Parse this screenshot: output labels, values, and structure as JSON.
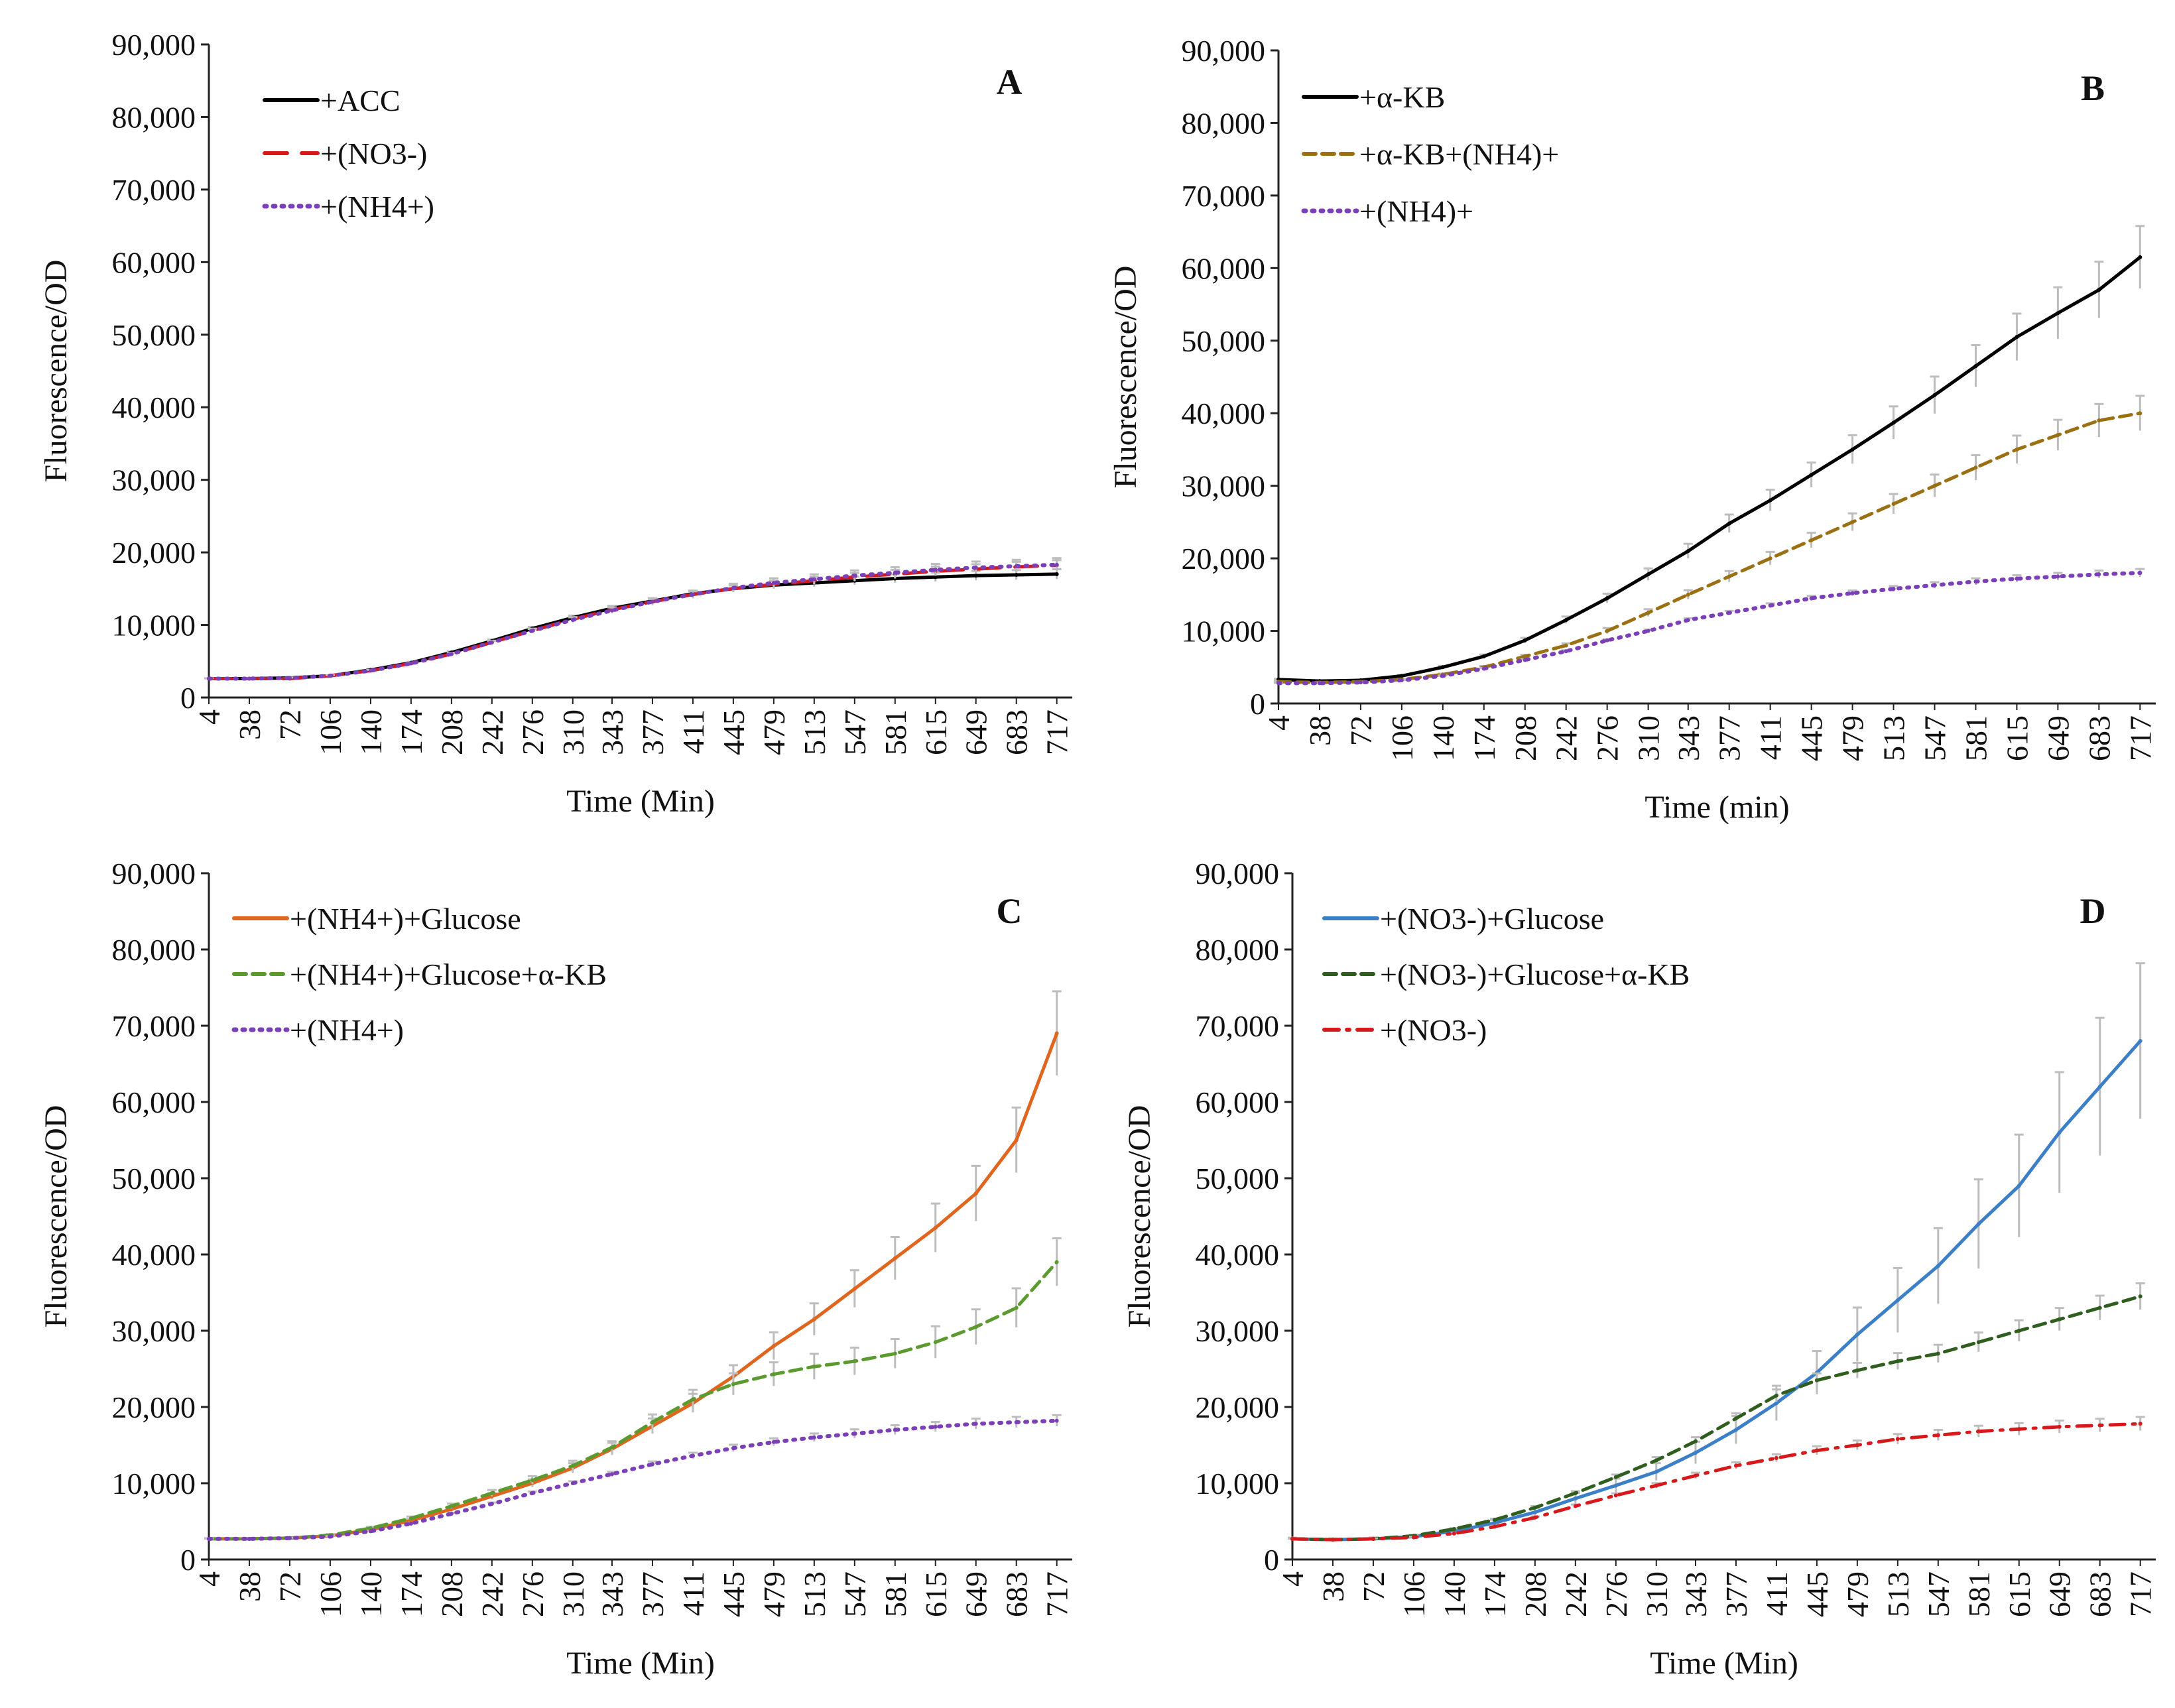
{
  "chart_data": [
    {
      "type": "line",
      "panel": "A",
      "xlabel": "Time (Min)",
      "ylabel": "Fluorescence/OD",
      "ylim": [
        0,
        90000
      ],
      "yticks": [
        "0",
        "10,000",
        "20,000",
        "30,000",
        "40,000",
        "50,000",
        "60,000",
        "70,000",
        "80,000",
        "90,000"
      ],
      "x": [
        4,
        38,
        72,
        106,
        140,
        174,
        208,
        242,
        276,
        310,
        343,
        377,
        411,
        445,
        479,
        513,
        547,
        581,
        615,
        649,
        683,
        717
      ],
      "legend_placement": "top-left",
      "series": [
        {
          "name": "+ACC",
          "color": "#000000",
          "style": "solid",
          "err": 0.04,
          "values": [
            2600,
            2600,
            2700,
            3000,
            3800,
            4800,
            6200,
            7800,
            9500,
            11000,
            12300,
            13300,
            14300,
            15000,
            15500,
            15800,
            16100,
            16400,
            16600,
            16800,
            16900,
            17000
          ]
        },
        {
          "name": "+(NO3-)",
          "color": "#d7191c",
          "style": "longdash",
          "err": 0.04,
          "values": [
            2600,
            2600,
            2600,
            3000,
            3700,
            4700,
            6000,
            7600,
            9200,
            10800,
            12100,
            13200,
            14200,
            15000,
            15600,
            16100,
            16600,
            17000,
            17400,
            17700,
            18000,
            18200
          ]
        },
        {
          "name": "+(NH4+)",
          "color": "#7b3fb8",
          "style": "dot",
          "err": 0.05,
          "values": [
            2600,
            2600,
            2700,
            3000,
            3700,
            4700,
            6000,
            7600,
            9200,
            10700,
            12000,
            13200,
            14200,
            15100,
            15800,
            16300,
            16800,
            17200,
            17600,
            17900,
            18100,
            18300
          ]
        }
      ]
    },
    {
      "type": "line",
      "panel": "B",
      "xlabel": "Time (min)",
      "ylabel": "Fluorescence/OD",
      "ylim": [
        0,
        90000
      ],
      "yticks": [
        "0",
        "10,000",
        "20,000",
        "30,000",
        "40,000",
        "50,000",
        "60,000",
        "70,000",
        "80,000",
        "90,000"
      ],
      "x": [
        4,
        38,
        72,
        106,
        140,
        174,
        208,
        242,
        276,
        310,
        343,
        377,
        411,
        445,
        479,
        513,
        547,
        581,
        615,
        649,
        683,
        717
      ],
      "legend_placement": "top-left",
      "series": [
        {
          "name": "+α-KB",
          "color": "#000000",
          "style": "solid",
          "err": 0.07,
          "values": [
            3300,
            3100,
            3200,
            3800,
            5000,
            6500,
            8700,
            11500,
            14500,
            17800,
            21000,
            24800,
            28000,
            31500,
            35000,
            38700,
            42500,
            46500,
            50500,
            53800,
            57000,
            61500
          ]
        },
        {
          "name": "+α-KB+(NH4)+",
          "color": "#9a7012",
          "style": "dash",
          "err": 0.06,
          "values": [
            3000,
            2900,
            3000,
            3300,
            4000,
            5000,
            6500,
            8000,
            10000,
            12500,
            15000,
            17500,
            20000,
            22500,
            25000,
            27500,
            30000,
            32500,
            35000,
            37000,
            39000,
            40000
          ]
        },
        {
          "name": "+(NH4)+",
          "color": "#7b3fb8",
          "style": "dot",
          "err": 0.03,
          "values": [
            2800,
            2800,
            2900,
            3200,
            3800,
            4800,
            6000,
            7200,
            8700,
            10000,
            11500,
            12500,
            13500,
            14500,
            15200,
            15800,
            16300,
            16800,
            17200,
            17500,
            17800,
            18000
          ]
        }
      ]
    },
    {
      "type": "line",
      "panel": "C",
      "xlabel": "Time (Min)",
      "ylabel": "Fluorescence/OD",
      "ylim": [
        0,
        90000
      ],
      "yticks": [
        "0",
        "10,000",
        "20,000",
        "30,000",
        "40,000",
        "50,000",
        "60,000",
        "70,000",
        "80,000",
        "90,000"
      ],
      "x": [
        4,
        38,
        72,
        106,
        140,
        174,
        208,
        242,
        276,
        310,
        343,
        377,
        411,
        445,
        479,
        513,
        547,
        581,
        615,
        649,
        683,
        717
      ],
      "legend_placement": "top-left",
      "series": [
        {
          "name": "+(NH4+)+Glucose",
          "color": "#e0651f",
          "style": "solid",
          "err": 0.08,
          "values": [
            2700,
            2700,
            2800,
            3100,
            3900,
            5100,
            6600,
            8300,
            10000,
            12000,
            14500,
            17500,
            20500,
            24000,
            28000,
            31500,
            35500,
            39500,
            43500,
            48000,
            55000,
            69000
          ]
        },
        {
          "name": "+(NH4+)+Glucose+α-KB",
          "color": "#5a9a2e",
          "style": "dash",
          "err": 0.08,
          "values": [
            2700,
            2700,
            2800,
            3200,
            4100,
            5400,
            7000,
            8700,
            10400,
            12300,
            14700,
            18000,
            21000,
            23000,
            24300,
            25300,
            26000,
            27000,
            28500,
            30500,
            33000,
            39000
          ]
        },
        {
          "name": "+(NH4+)",
          "color": "#7b3fb8",
          "style": "dot",
          "err": 0.04,
          "values": [
            2700,
            2700,
            2800,
            3000,
            3700,
            4700,
            6000,
            7300,
            8700,
            10000,
            11200,
            12500,
            13600,
            14600,
            15400,
            16000,
            16500,
            17000,
            17400,
            17800,
            18000,
            18200
          ]
        }
      ]
    },
    {
      "type": "line",
      "panel": "D",
      "xlabel": "Time (Min)",
      "ylabel": "Fluorescence/OD",
      "ylim": [
        0,
        90000
      ],
      "yticks": [
        "0",
        "10,000",
        "20,000",
        "30,000",
        "40,000",
        "50,000",
        "60,000",
        "70,000",
        "80,000",
        "90,000"
      ],
      "x": [
        4,
        38,
        72,
        106,
        140,
        174,
        208,
        242,
        276,
        310,
        343,
        377,
        411,
        445,
        479,
        513,
        547,
        581,
        615,
        649,
        683,
        717
      ],
      "legend_placement": "top-left",
      "series": [
        {
          "name": "+(NO3-)+Glucose",
          "color": "#3a7fc8",
          "style": "solid",
          "err": 0.15,
          "values": [
            2700,
            2600,
            2700,
            3000,
            3700,
            4800,
            6200,
            8000,
            9700,
            11500,
            14000,
            17000,
            20500,
            24500,
            29500,
            34000,
            38500,
            44000,
            49000,
            56000,
            62000,
            68000
          ]
        },
        {
          "name": "+(NO3-)+Glucose+α-KB",
          "color": "#2f5e1f",
          "style": "dash",
          "err": 0.05,
          "values": [
            2700,
            2600,
            2700,
            3100,
            4000,
            5200,
            6800,
            8700,
            10800,
            13000,
            15500,
            18500,
            21500,
            23500,
            24800,
            26000,
            27000,
            28500,
            30000,
            31500,
            33000,
            34500
          ]
        },
        {
          "name": "+(NO3-)",
          "color": "#d7191c",
          "style": "dashdot",
          "err": 0.05,
          "values": [
            2700,
            2600,
            2700,
            2900,
            3400,
            4300,
            5500,
            7000,
            8400,
            9700,
            11000,
            12300,
            13300,
            14300,
            15000,
            15800,
            16300,
            16800,
            17100,
            17400,
            17600,
            17800
          ]
        }
      ]
    }
  ]
}
